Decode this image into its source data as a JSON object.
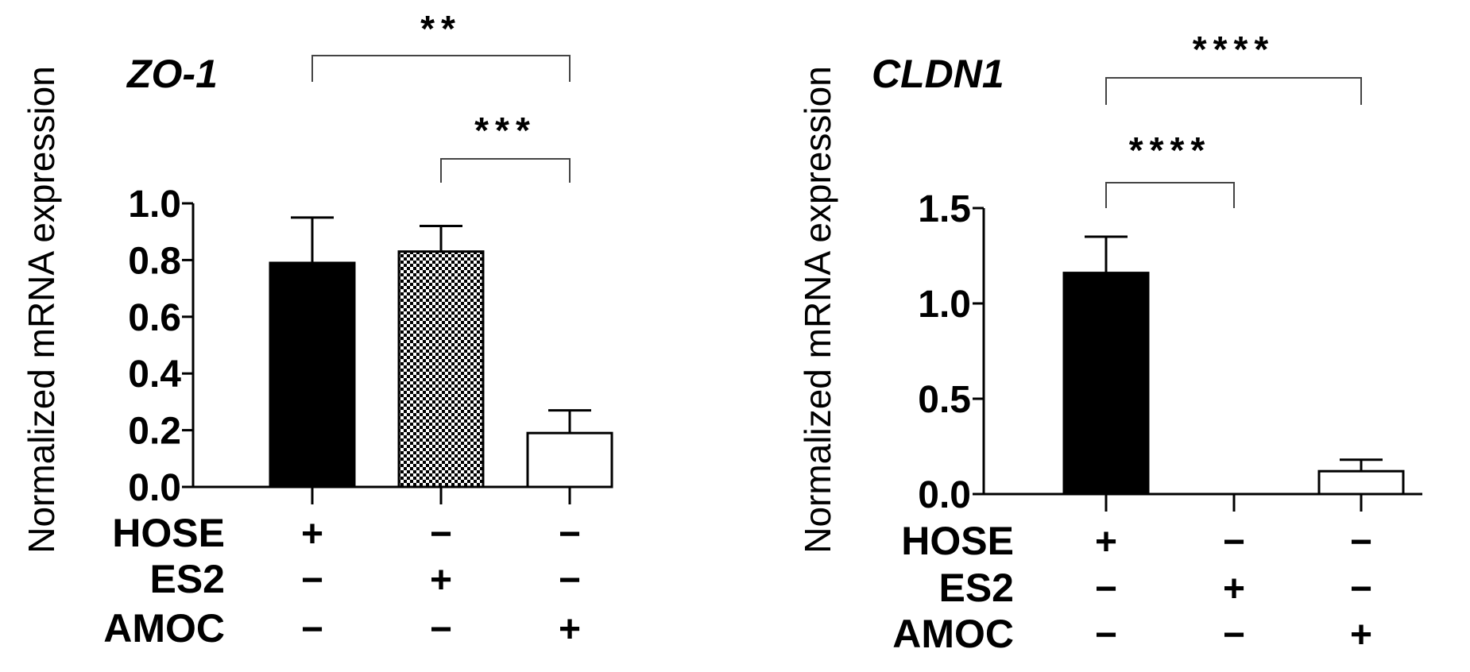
{
  "colors": {
    "ink": "#000000",
    "background": "#ffffff",
    "pattern_dark": "#000000",
    "pattern_light": "#ffffff"
  },
  "chart_data": [
    {
      "type": "bar",
      "title": "ZO-1",
      "ylabel": "Normalized mRNA expression",
      "ylim": [
        0,
        1.0
      ],
      "yticks": [
        "0.0",
        "0.2",
        "0.4",
        "0.6",
        "0.8",
        "1.0"
      ],
      "categories": [
        "HOSE",
        "ES2",
        "AMOC"
      ],
      "values": [
        0.79,
        0.83,
        0.19
      ],
      "errors": [
        0.16,
        0.09,
        0.08
      ],
      "fills": [
        "solid",
        "checker",
        "open"
      ],
      "row_labels": [
        "HOSE",
        "ES2",
        "AMOC"
      ],
      "group_signs": [
        [
          "+",
          "−",
          "−"
        ],
        [
          "−",
          "+",
          "−"
        ],
        [
          "−",
          "−",
          "+"
        ]
      ],
      "significance": [
        {
          "from": 0,
          "to": 2,
          "label": "**"
        },
        {
          "from": 1,
          "to": 2,
          "label": "***"
        }
      ],
      "grid": false
    },
    {
      "type": "bar",
      "title": "CLDN1",
      "ylabel": "Normalized mRNA expression",
      "ylim": [
        0,
        1.5
      ],
      "yticks": [
        "0.0",
        "0.5",
        "1.0",
        "1.5"
      ],
      "categories": [
        "HOSE",
        "ES2",
        "AMOC"
      ],
      "values": [
        1.16,
        0.0,
        0.12
      ],
      "errors": [
        0.19,
        0.0,
        0.06
      ],
      "fills": [
        "solid",
        "solid",
        "open"
      ],
      "row_labels": [
        "HOSE",
        "ES2",
        "AMOC"
      ],
      "group_signs": [
        [
          "+",
          "−",
          "−"
        ],
        [
          "−",
          "+",
          "−"
        ],
        [
          "−",
          "−",
          "+"
        ]
      ],
      "significance": [
        {
          "from": 0,
          "to": 2,
          "label": "****"
        },
        {
          "from": 0,
          "to": 1,
          "label": "****"
        }
      ],
      "grid": false
    }
  ]
}
